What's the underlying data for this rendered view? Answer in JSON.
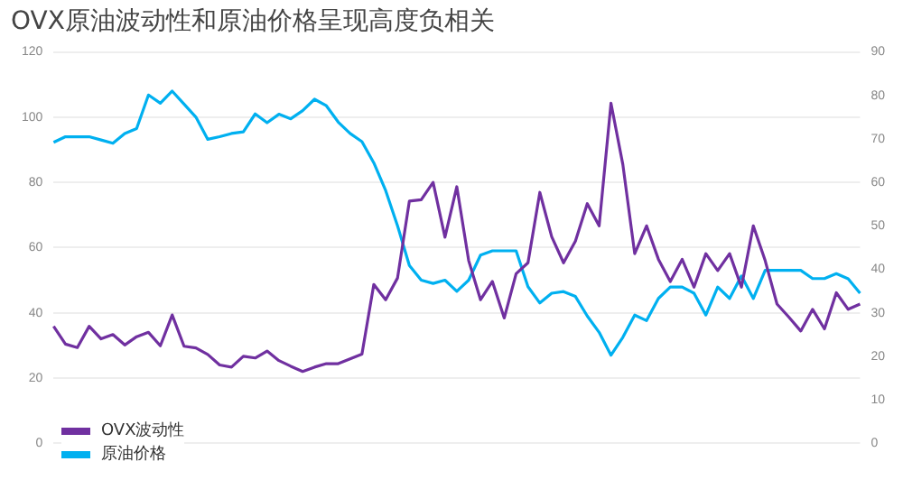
{
  "chart_data": {
    "type": "line",
    "title": "OVX原油波动性和原油价格呈现高度负相关",
    "categories": [
      null,
      null,
      null,
      null,
      null,
      null,
      null,
      null,
      null,
      null,
      null,
      null,
      null,
      null,
      null,
      null,
      null,
      null,
      null,
      null,
      null,
      null,
      null,
      null,
      null,
      null,
      null,
      null,
      null,
      null,
      null,
      null,
      null,
      null,
      null,
      null,
      null,
      null,
      null,
      null,
      null,
      null,
      null,
      null,
      null,
      null,
      null,
      null,
      null,
      null,
      null,
      null,
      null,
      null,
      null,
      null,
      null,
      null,
      null,
      null,
      null,
      null,
      null,
      null,
      null,
      null,
      null,
      null,
      null
    ],
    "series": [
      {
        "name": "OVX波动性",
        "color": "#7030a0",
        "axis": "y2",
        "values": [
          26.9,
          22.8,
          22,
          26.9,
          24,
          25,
          22.6,
          24.5,
          25.5,
          22.4,
          29.5,
          22.3,
          21.9,
          20.4,
          18,
          17.5,
          20,
          19.6,
          21.2,
          19,
          17.7,
          16.5,
          17.5,
          18.3,
          18.3,
          19.4,
          20.5,
          36.5,
          33,
          38,
          55.7,
          56,
          60,
          47.4,
          59,
          42,
          33,
          37.2,
          28.8,
          39,
          41.5,
          57.7,
          47.5,
          41.5,
          46.5,
          55.1,
          50,
          78.2,
          64.1,
          43.6,
          50,
          42.3,
          37.2,
          42.3,
          35.9,
          43.6,
          39.7,
          43.6,
          35.9,
          50,
          42,
          32,
          29,
          25.8,
          30.8,
          26.3,
          34.6,
          30.8,
          32
        ]
      },
      {
        "name": "原油价格",
        "color": "#00b0f0",
        "values": [
          92.3,
          94,
          94,
          94,
          93,
          92,
          95,
          96.5,
          106.8,
          104.3,
          108,
          104,
          100,
          93.2,
          94,
          95,
          95.5,
          101,
          98.3,
          100.9,
          99.5,
          102,
          105.5,
          103.5,
          98.5,
          95,
          92.5,
          86,
          77.5,
          66.7,
          54.5,
          50,
          49,
          50,
          46.6,
          50,
          57.7,
          59,
          59,
          59,
          48,
          43,
          46,
          46.5,
          45,
          39,
          34,
          27,
          32.5,
          39.3,
          37.6,
          44.4,
          47.9,
          47.9,
          46,
          39.3,
          47.9,
          44.4,
          51.3,
          44.4,
          53,
          53,
          53,
          53,
          50.5,
          50.5,
          52,
          50.4,
          46
        ]
      }
    ],
    "ylim": [
      0,
      120
    ],
    "yticks": [
      0,
      20,
      40,
      60,
      80,
      100,
      120
    ],
    "y2lim": [
      0,
      90
    ],
    "y2ticks": [
      0,
      10,
      20,
      30,
      40,
      50,
      60,
      70,
      80,
      90
    ],
    "grid": "y",
    "legend": "bottom left",
    "marker": "none",
    "line_style": "solid"
  }
}
